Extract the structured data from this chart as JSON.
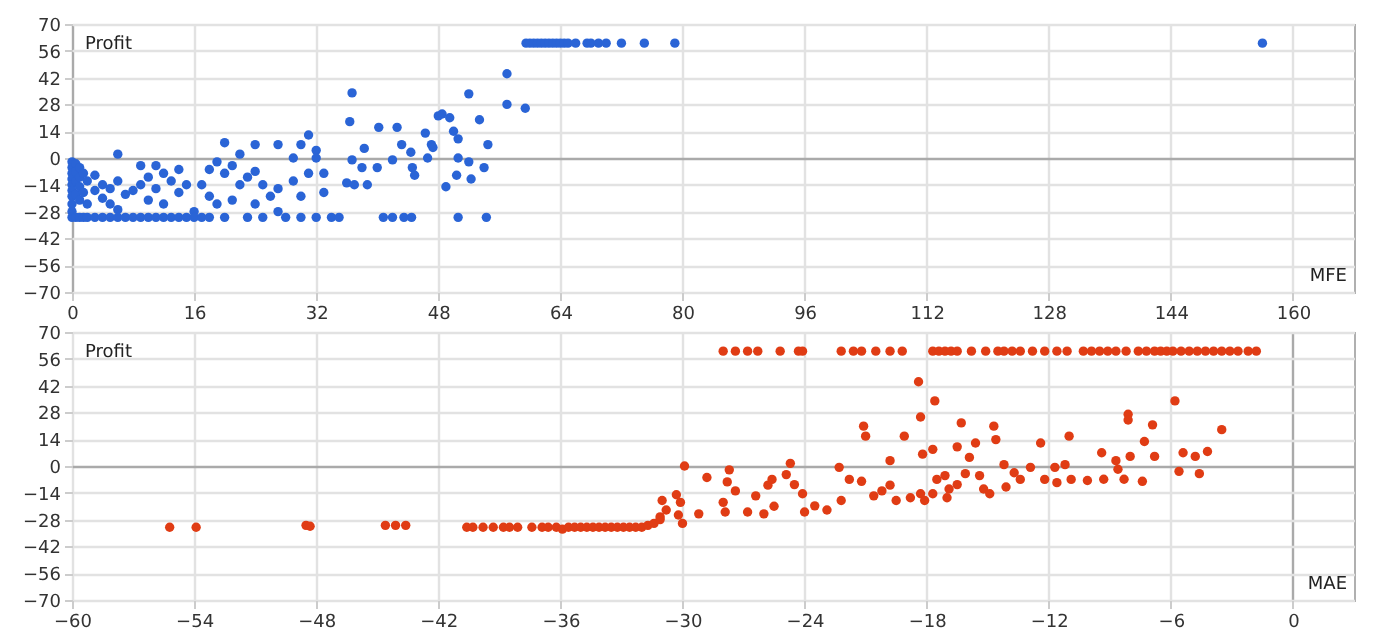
{
  "chart_data": [
    {
      "type": "scatter",
      "xlabel": "MFE",
      "ylabel": "Profit",
      "color": "#2a64d6",
      "marker": "circle",
      "grid": true,
      "xlim": [
        0,
        168
      ],
      "ylim": [
        -70,
        70
      ],
      "xticks": [
        0,
        16,
        32,
        48,
        64,
        80,
        96,
        112,
        128,
        144,
        160
      ],
      "yticks": [
        -70,
        -56,
        -42,
        -28,
        -14,
        0,
        14,
        28,
        42,
        56,
        70
      ],
      "x": [
        0,
        0,
        0,
        0,
        0,
        0,
        0,
        0,
        0,
        0,
        0.5,
        0.5,
        0.5,
        0.5,
        0.5,
        1,
        1,
        1,
        1,
        1,
        1.5,
        1.5,
        1.5,
        2,
        2,
        2,
        3,
        3,
        3,
        4,
        4,
        4,
        5,
        5,
        5,
        6,
        6,
        6,
        6,
        7,
        7,
        8,
        8,
        9,
        9,
        9,
        10,
        10,
        10,
        11,
        11,
        11,
        12,
        12,
        12,
        13,
        13,
        14,
        14,
        14,
        15,
        15,
        16,
        16,
        17,
        17,
        18,
        18,
        18,
        19,
        19,
        20,
        20,
        20,
        21,
        21,
        22,
        22,
        23,
        23,
        24,
        24,
        24,
        25,
        25,
        26,
        27,
        27,
        27,
        28,
        29,
        29,
        30,
        30,
        30,
        31,
        31,
        32,
        32,
        32,
        33,
        33,
        34,
        35,
        36,
        36.4,
        36.7,
        36.7,
        37,
        38,
        38.3,
        38.7,
        40,
        40.2,
        40.8,
        42,
        42.6,
        42,
        43.2,
        43.5,
        44.4,
        44.6,
        44.9,
        44.5,
        46.3,
        46.6,
        47.1,
        47.3,
        48,
        48.5,
        49,
        49.5,
        50,
        50.4,
        50.6,
        50.6,
        50.6,
        52,
        52,
        52.3,
        53.4,
        54,
        54.3,
        54.5,
        57,
        57,
        59.4,
        59.5,
        60,
        60.5,
        61,
        61.5,
        62,
        62.5,
        63,
        63.5,
        64,
        64.5,
        65,
        66,
        67.5,
        68,
        69,
        70,
        72,
        75,
        79,
        156
      ],
      "values": [
        -2,
        -5,
        -8,
        -11,
        -14,
        -17,
        -20,
        -24,
        -28,
        -31,
        -3,
        -7,
        -12,
        -19,
        -31,
        -5,
        -10,
        -15,
        -22,
        -31,
        -8,
        -18,
        -31,
        -12,
        -24,
        -31,
        -9,
        -17,
        -31,
        -14,
        -21,
        -31,
        -16,
        -24,
        -31,
        2,
        -12,
        -27,
        -31,
        -19,
        -31,
        -17,
        -31,
        -4,
        -14,
        -31,
        -10,
        -22,
        -31,
        -4,
        -16,
        -31,
        -8,
        -24,
        -31,
        -12,
        -31,
        -6,
        -18,
        -31,
        -14,
        -31,
        -28,
        -31,
        -14,
        -31,
        -6,
        -20,
        -31,
        -2,
        -24,
        8,
        -8,
        -31,
        -4,
        -22,
        2,
        -14,
        -10,
        -31,
        7,
        -7,
        -24,
        -14,
        -31,
        -20,
        7,
        -16,
        -28,
        -31,
        0,
        -12,
        7,
        -20,
        -31,
        12,
        -8,
        4,
        0,
        -31,
        -18,
        -8,
        -31,
        -31,
        -13,
        19,
        34,
        -1,
        -14,
        -5,
        5,
        -14,
        -5,
        16,
        -31,
        -1,
        16,
        -31,
        7,
        -31,
        3,
        -5,
        -9,
        -31,
        13,
        0,
        7,
        5.5,
        22,
        23,
        -15,
        21,
        14,
        -9,
        0,
        10,
        -31,
        33.5,
        -2,
        -11,
        20,
        -5,
        -31,
        7,
        44,
        28,
        26,
        60,
        60,
        60,
        60,
        60,
        60,
        60,
        60,
        60,
        60,
        60,
        60,
        60,
        60,
        60,
        60,
        60,
        60,
        60,
        60,
        60
      ]
    },
    {
      "type": "scatter",
      "xlabel": "MAE",
      "ylabel": "Profit",
      "color": "#e03c14",
      "marker": "circle",
      "grid": true,
      "xlim": [
        -60,
        3
      ],
      "ylim": [
        -70,
        70
      ],
      "xticks": [
        -60,
        -54,
        -48,
        -42,
        -36,
        -30,
        -24,
        -18,
        -12,
        -6,
        0
      ],
      "yticks": [
        -70,
        -56,
        -42,
        -28,
        -14,
        0,
        14,
        28,
        42,
        56,
        70
      ],
      "x": [
        -55.2,
        -53.9,
        -48.5,
        -48.3,
        -44.6,
        -44.1,
        -43.6,
        -40.6,
        -40.3,
        -39.8,
        -39.3,
        -38.8,
        -38.5,
        -38.1,
        -37.4,
        -36.9,
        -36.6,
        -36.2,
        -35.9,
        -35.6,
        -35.3,
        -35,
        -34.7,
        -34.4,
        -34.1,
        -33.8,
        -33.5,
        -33.2,
        -32.9,
        -32.6,
        -32.3,
        -32,
        -31.7,
        -31.4,
        -31.1,
        -31.1,
        -31,
        -30.8,
        -30.3,
        -30.2,
        -30.1,
        -29.9,
        -30,
        -28,
        -27.4,
        -26.8,
        -26.3,
        -25.2,
        -24.3,
        -24.1,
        -22.2,
        -21.6,
        -21.2,
        -20.5,
        -19.8,
        -19.2,
        -17.7,
        -17.4,
        -17.1,
        -16.8,
        -16.5,
        -15.8,
        -15.1,
        -14.5,
        -14.2,
        -13.8,
        -13.4,
        -12.8,
        -12.2,
        -11.6,
        -11.1,
        -10.3,
        -9.9,
        -9.5,
        -9.1,
        -8.7,
        -8.2,
        -7.6,
        -7.2,
        -6.8,
        -6.5,
        -6.2,
        -5.9,
        -5.5,
        -5.1,
        -4.7,
        -4.3,
        -3.9,
        -3.5,
        -3.1,
        -2.7,
        -2.2,
        -1.8,
        -18.4,
        -17.6,
        -18.3,
        -21.1,
        -21,
        -19.1,
        -16.3,
        -14.7,
        -14.6,
        -15.6,
        -16.5,
        -17.7,
        -18.2,
        -15.9,
        -19.8,
        -22.3,
        -24.7,
        -27.7,
        -28.8,
        -27.8,
        -27.4,
        -28,
        -27.9,
        -29.2,
        -26.8,
        -26,
        -25.5,
        -26.4,
        -25.8,
        -25.6,
        -24.9,
        -24.5,
        -24.1,
        -24,
        -23.5,
        -22.9,
        -22.2,
        -21.8,
        -21.2,
        -20.6,
        -20.2,
        -19.8,
        -19.5,
        -18.8,
        -18.3,
        -18.1,
        -17.7,
        -17.5,
        -17.1,
        -17,
        -16.9,
        -16.5,
        -16.1,
        -15.4,
        -15.2,
        -14.9,
        -14.2,
        -14.1,
        -13.7,
        -13.4,
        -12.9,
        -12.4,
        -12.2,
        -11.7,
        -11.6,
        -11.2,
        -11,
        -10.9,
        -10.1,
        -9.4,
        -9.3,
        -8.7,
        -8.6,
        -8.3,
        -8.1,
        -8.1,
        -8,
        -7.3,
        -6.9,
        -6.8,
        -5.8,
        -5.6,
        -5.4,
        -4.8,
        -4.6,
        -4.2,
        -3.5,
        -7.4
      ],
      "values": [
        -32,
        -32,
        -31,
        -31.5,
        -31,
        -31,
        -31,
        -32,
        -32,
        -32,
        -32,
        -32,
        -32,
        -32,
        -32,
        -32,
        -32,
        -32,
        -33,
        -32,
        -32,
        -32,
        -32,
        -32,
        -32,
        -32,
        -32,
        -32,
        -32,
        -32,
        -32,
        -32,
        -31,
        -30,
        -28,
        -26.6,
        -18,
        -23,
        -15,
        -25.6,
        -19,
        0,
        -30,
        60,
        60,
        60,
        60,
        60,
        60,
        60,
        60,
        60,
        60,
        60,
        60,
        60,
        60,
        60,
        60,
        60,
        60,
        60,
        60,
        60,
        60,
        60,
        60,
        60,
        60,
        60,
        60,
        60,
        60,
        60,
        60,
        60,
        60,
        60,
        60,
        60,
        60,
        60,
        60,
        60,
        60,
        60,
        60,
        60,
        60,
        60,
        60,
        60,
        60,
        44,
        34,
        25.6,
        20.8,
        15.6,
        15.6,
        22.5,
        20.8,
        13.8,
        12,
        10,
        8.7,
        6.2,
        4.5,
        2.8,
        -0.7,
        1.4,
        -2,
        -6,
        -8.3,
        -13,
        -19,
        -24,
        -25,
        -24,
        -25,
        -21,
        -15.6,
        -10,
        -7,
        -4.5,
        -9.7,
        -14.5,
        -24,
        -20.8,
        -23,
        -18,
        -7,
        -8,
        -15.6,
        -13,
        -10,
        -18,
        -16.6,
        -14.5,
        -18,
        -14.5,
        -7,
        -5,
        -16.6,
        -12,
        -9.7,
        -4,
        -5,
        -12,
        -14.5,
        0.7,
        -11,
        -3.5,
        -7,
        -0.7,
        12,
        -7,
        -0.7,
        -8.7,
        0.7,
        15.6,
        -7,
        -7.6,
        6.9,
        -6.9,
        2.8,
        -1.7,
        -6.9,
        27,
        24,
        5,
        12.8,
        21.5,
        5,
        34,
        -2.8,
        6.9,
        5,
        -4,
        7.6,
        19,
        -8
      ]
    }
  ]
}
